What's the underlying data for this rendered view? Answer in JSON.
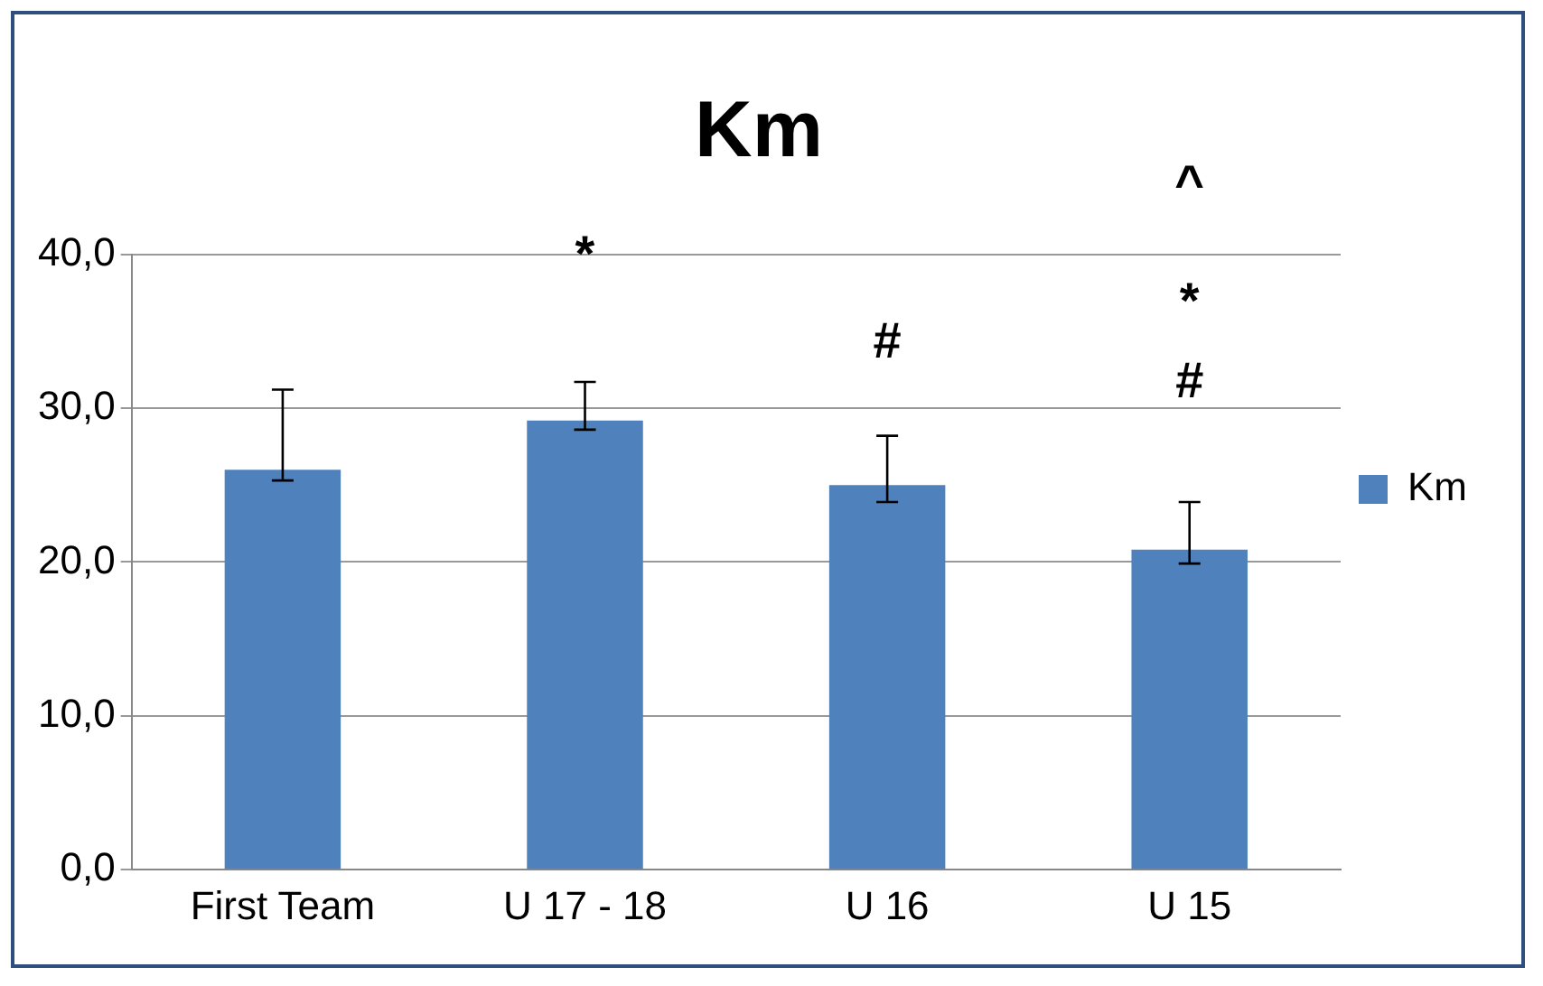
{
  "chart_data": {
    "type": "bar",
    "title": "Km",
    "categories": [
      "First Team",
      "U 17 - 18",
      "U 16",
      "U 15"
    ],
    "series": [
      {
        "name": "Km",
        "color": "#4f81bd",
        "values": [
          26.0,
          29.2,
          25.0,
          20.8
        ],
        "errors": [
          [
            25.3,
            31.2
          ],
          [
            28.6,
            31.7
          ],
          [
            23.9,
            28.2
          ],
          [
            19.9,
            23.9
          ]
        ]
      }
    ],
    "ylim": [
      0,
      40
    ],
    "yticks": [
      {
        "value": 0,
        "label": "0,0"
      },
      {
        "value": 10,
        "label": "10,0"
      },
      {
        "value": 20,
        "label": "20,0"
      },
      {
        "value": 30,
        "label": "30,0"
      },
      {
        "value": 40,
        "label": "40,0"
      }
    ],
    "grid": "y",
    "legend": "right",
    "annotations": [
      "*",
      "#",
      "#",
      "*",
      "^"
    ]
  }
}
